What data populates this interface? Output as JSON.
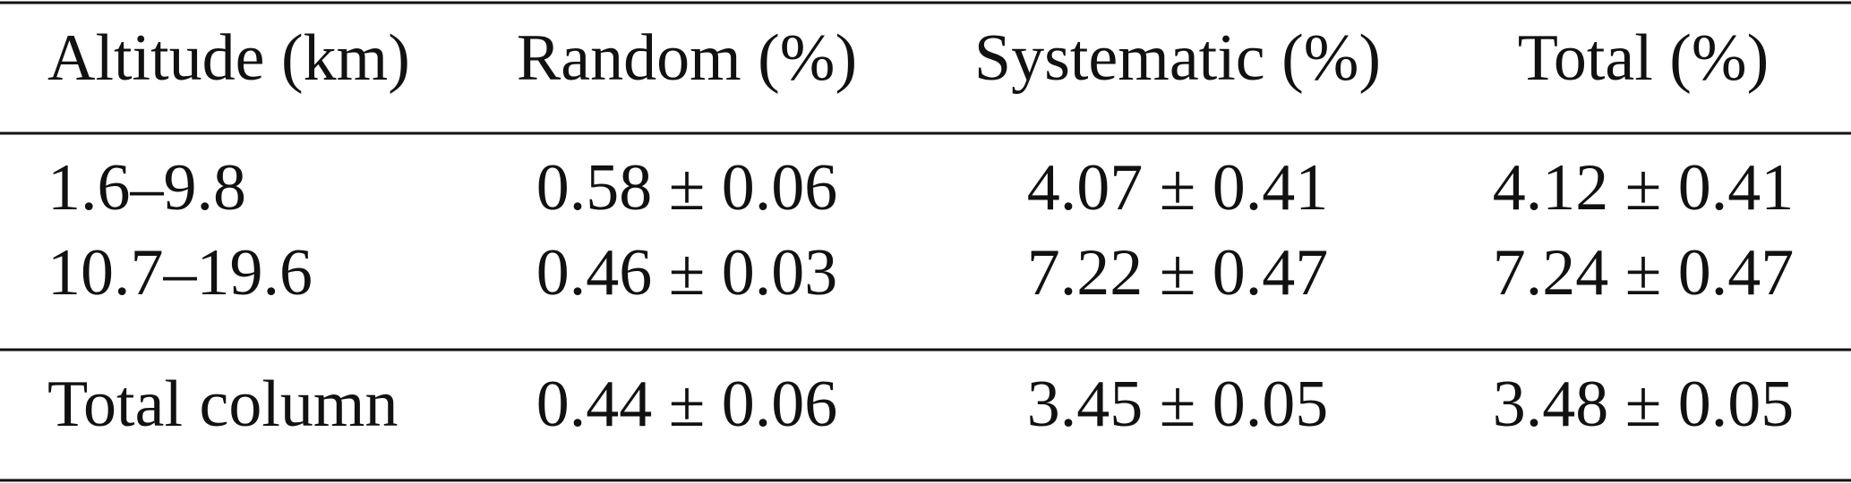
{
  "table": {
    "header": [
      "Altitude (km)",
      "Random (%)",
      "Systematic (%)",
      "Total (%)"
    ],
    "rows": [
      [
        "1.6–9.8",
        "0.58 ± 0.06",
        "4.07 ± 0.41",
        "4.12 ± 0.41"
      ],
      [
        "10.7–19.6",
        "0.46 ± 0.03",
        "7.22 ± 0.47",
        "7.24 ± 0.47"
      ],
      [
        "Total column",
        "0.44 ± 0.06",
        "3.45 ± 0.05",
        "3.48 ± 0.05"
      ]
    ]
  }
}
